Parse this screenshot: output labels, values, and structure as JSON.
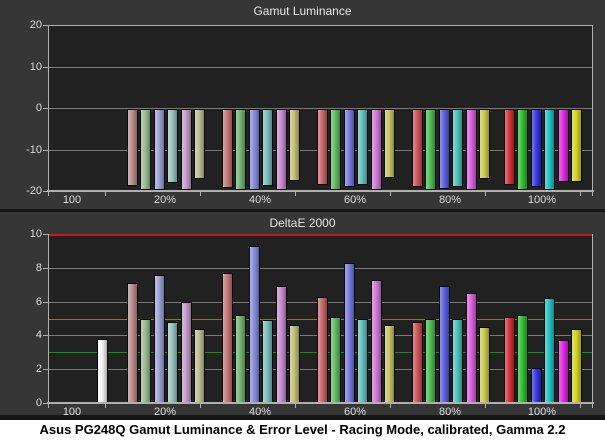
{
  "caption": "Asus PG248Q Gamut Luminance & Error Level - Racing Mode, calibrated, Gamma 2.2",
  "theme": {
    "panel_bg": "#363636",
    "plot_bg": "#212121",
    "grid_color": "#7a7a7a",
    "axis_color": "#b0b0b0",
    "text_color": "#dedede",
    "divider_color": "#151515",
    "caption_bg": "#ffffff",
    "caption_text": "#000000"
  },
  "palette": {
    "20%": [
      "#b98689",
      "#94b78d",
      "#959cd1",
      "#90bfbc",
      "#bd95c3",
      "#b9b98b"
    ],
    "40%": [
      "#c27173",
      "#68b36b",
      "#7f85d6",
      "#6fbcb9",
      "#c884cd",
      "#bdbd70"
    ],
    "60%": [
      "#c55f61",
      "#57b55a",
      "#6d72da",
      "#5abcb9",
      "#ce6fd3",
      "#c1c15c"
    ],
    "80%": [
      "#c94a4d",
      "#41ba45",
      "#5257de",
      "#42bfbc",
      "#d657db",
      "#c6c642"
    ],
    "100%": [
      "#ce282d",
      "#20bc25",
      "#2a2ae2",
      "#14bfbf",
      "#df1ce2",
      "#d0d01a"
    ]
  },
  "white_bar_color": "#f2f2f2",
  "chart_data": [
    {
      "type": "bar",
      "title": "Gamut Luminance",
      "xlabel": "",
      "ylabel": "",
      "ylim": [
        -20,
        20
      ],
      "yticks": [
        20,
        10,
        0,
        -10,
        -20
      ],
      "grid": "horizontal",
      "legend": "none",
      "sections": [
        "100",
        "20%",
        "40%",
        "60%",
        "80%",
        "100%"
      ],
      "series_names": [
        "red",
        "green",
        "blue",
        "cyan",
        "magenta",
        "yellow"
      ],
      "baseline": 0,
      "groups": [
        {
          "label": "20%",
          "values": [
            -18.6,
            -19.4,
            -19.4,
            -17.9,
            -19.4,
            -16.8
          ]
        },
        {
          "label": "40%",
          "values": [
            -19.0,
            -19.4,
            -19.4,
            -18.6,
            -19.4,
            -17.3
          ]
        },
        {
          "label": "60%",
          "values": [
            -18.4,
            -19.4,
            -18.9,
            -18.4,
            -19.4,
            -16.7
          ]
        },
        {
          "label": "80%",
          "values": [
            -18.8,
            -19.4,
            -19.2,
            -18.7,
            -19.4,
            -16.8
          ]
        },
        {
          "label": "100%",
          "values": [
            -18.2,
            -19.4,
            -18.8,
            -19.4,
            -17.5,
            -17.7
          ]
        }
      ]
    },
    {
      "type": "bar",
      "title": "DeltaE 2000",
      "xlabel": "",
      "ylabel": "",
      "ylim": [
        0,
        10
      ],
      "yticks": [
        10,
        8,
        6,
        4,
        2,
        0
      ],
      "grid": "horizontal",
      "legend": "none",
      "reference_lines": [
        {
          "value": 10,
          "color": "#c41a1f",
          "thickness": 2
        },
        {
          "value": 5,
          "color": "#7c7c34",
          "thickness": 1
        },
        {
          "value": 3,
          "color": "#009e00",
          "thickness": 1
        }
      ],
      "sections": [
        "100",
        "20%",
        "40%",
        "60%",
        "80%",
        "100%"
      ],
      "series_names": [
        "red",
        "green",
        "blue",
        "cyan",
        "magenta",
        "yellow"
      ],
      "white_point": {
        "section": "100",
        "value": 3.8
      },
      "baseline": 0,
      "groups": [
        {
          "label": "20%",
          "values": [
            7.1,
            5.0,
            7.6,
            4.8,
            6.0,
            4.4
          ]
        },
        {
          "label": "40%",
          "values": [
            7.7,
            5.2,
            9.3,
            4.9,
            6.9,
            4.6
          ]
        },
        {
          "label": "60%",
          "values": [
            6.3,
            5.1,
            8.3,
            5.0,
            7.3,
            4.6
          ]
        },
        {
          "label": "80%",
          "values": [
            4.8,
            5.0,
            6.9,
            5.0,
            6.5,
            4.5
          ]
        },
        {
          "label": "100%",
          "values": [
            5.1,
            5.2,
            2.1,
            6.2,
            3.7,
            4.4
          ]
        }
      ]
    }
  ]
}
